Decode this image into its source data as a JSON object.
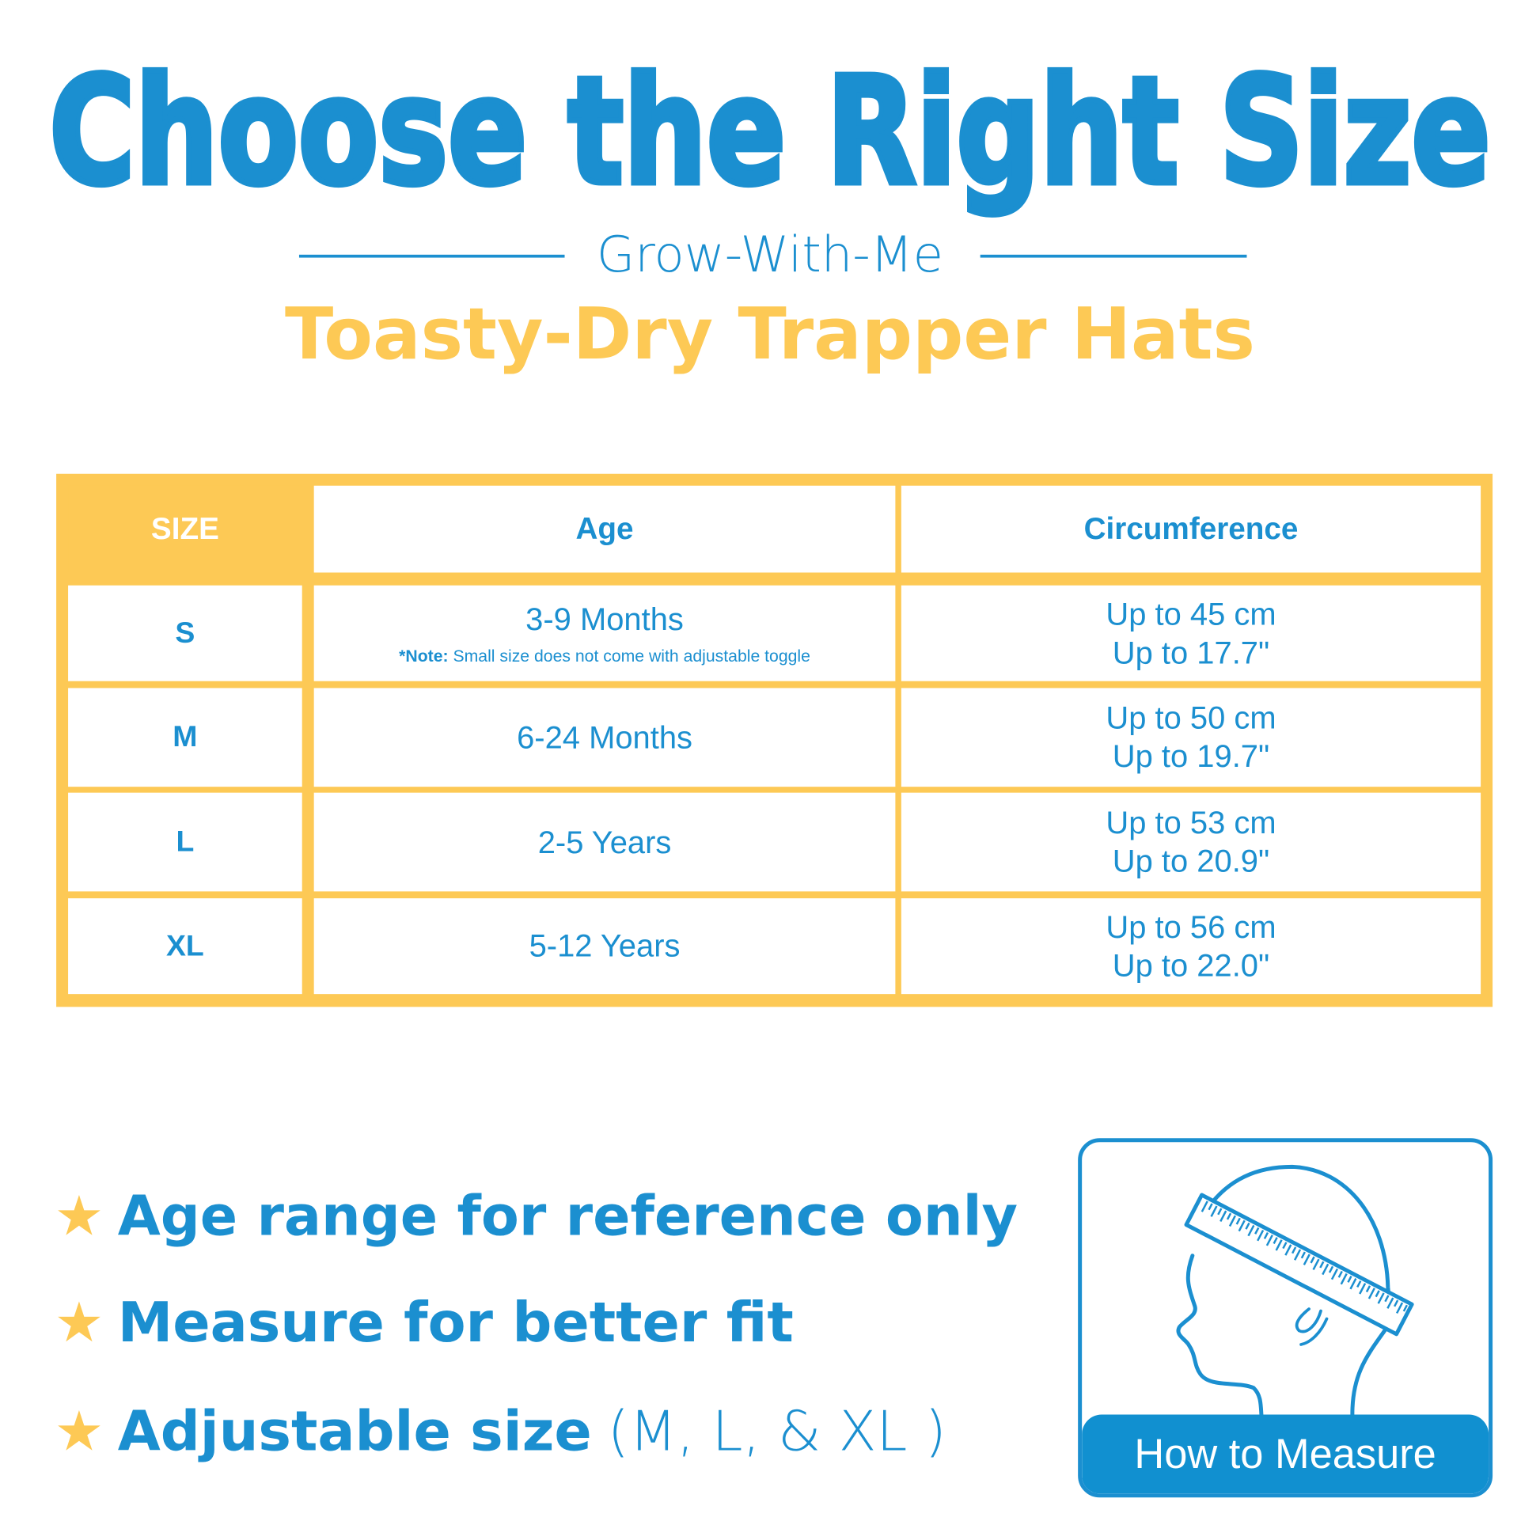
{
  "header": {
    "title": "Choose the Right Size",
    "subtitle": "Grow-With-Me",
    "product": "Toasty-Dry Trapper Hats"
  },
  "table": {
    "columns": [
      "SIZE",
      "Age",
      "Circumference"
    ],
    "rows": [
      {
        "size": "S",
        "age": "3-9 Months",
        "note_label": "*Note:",
        "note_text": " Small size does not come with adjustable toggle",
        "cm": "Up to 45 cm",
        "in": "Up to 17.7\""
      },
      {
        "size": "M",
        "age": "6-24 Months",
        "cm": "Up to 50 cm",
        "in": "Up to 19.7\""
      },
      {
        "size": "L",
        "age": "2-5 Years",
        "cm": "Up to 53 cm",
        "in": "Up to 20.9\""
      },
      {
        "size": "XL",
        "age": "5-12 Years",
        "cm": "Up to 56 cm",
        "in": "Up to 22.0\""
      }
    ]
  },
  "bullets": [
    {
      "text": "Age range for reference only",
      "extra": ""
    },
    {
      "text": "Measure for better fit",
      "extra": ""
    },
    {
      "text": "Adjustable size",
      "extra": "(M, L, & XL )"
    }
  ],
  "measure": {
    "label": "How to Measure",
    "icon": "head-with-tape-measure-icon"
  },
  "colors": {
    "blue": "#1b8fd0",
    "yellow": "#fdc955"
  }
}
